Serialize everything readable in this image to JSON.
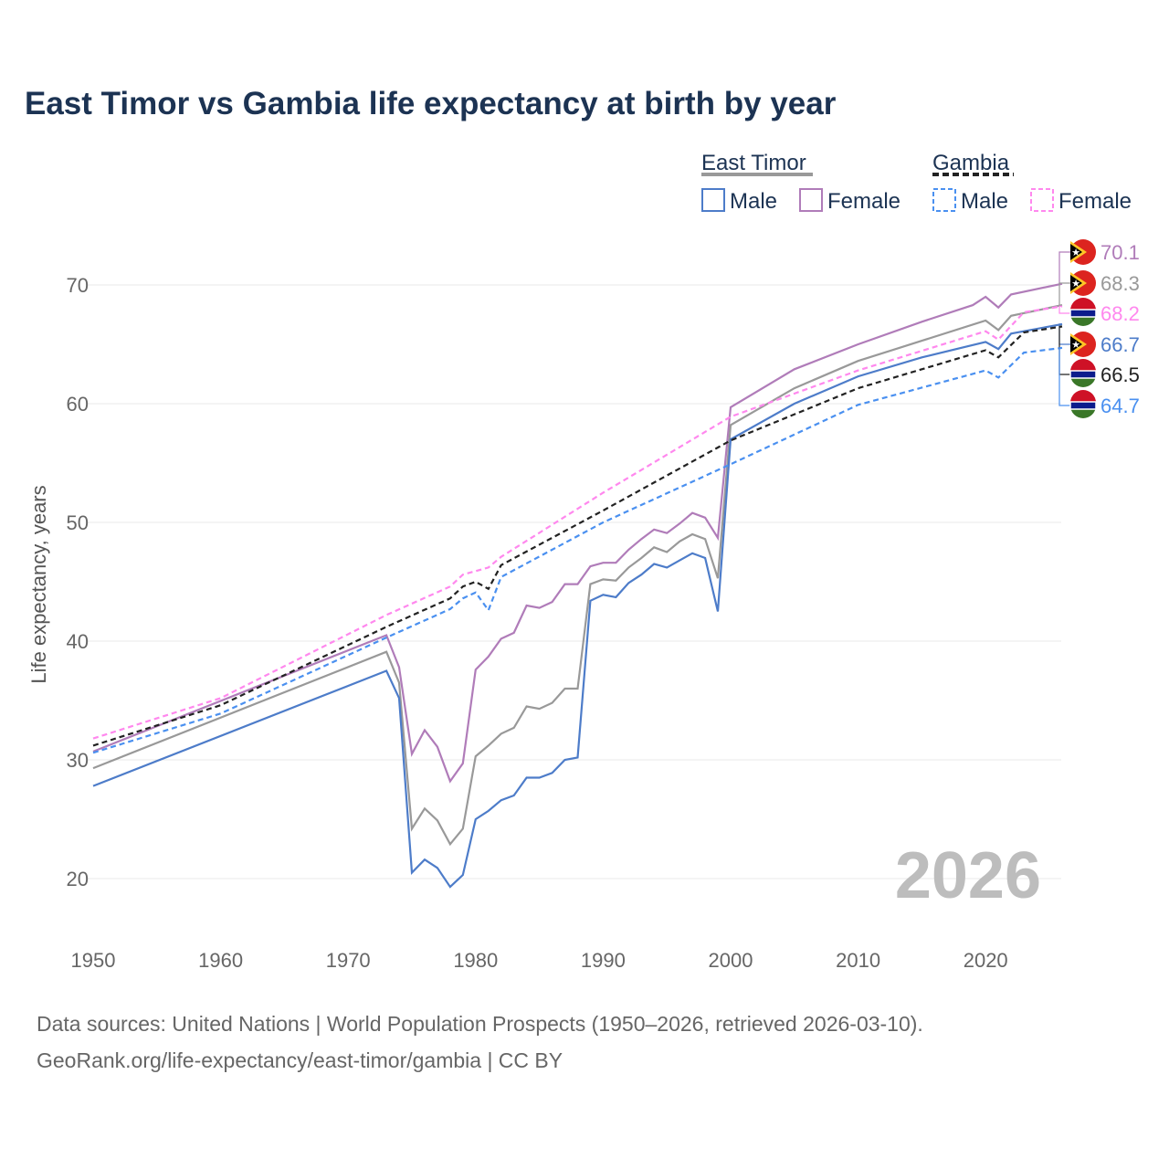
{
  "chart_data": {
    "type": "line",
    "title": "East Timor vs Gambia life expectancy at birth by year",
    "ylabel": "Life expectancy, years",
    "xlabel": "",
    "xlim": [
      1950,
      2026
    ],
    "ylim": [
      15,
      74
    ],
    "xticks": [
      1950,
      1960,
      1970,
      1980,
      1990,
      2000,
      2010,
      2020
    ],
    "yticks": [
      20,
      30,
      40,
      50,
      60,
      70
    ],
    "year_watermark": "2026",
    "legend": {
      "groups": [
        {
          "name": "East Timor",
          "items": [
            "Male",
            "Female"
          ]
        },
        {
          "name": "Gambia",
          "items": [
            "Male",
            "Female"
          ]
        }
      ],
      "placement": "top-right"
    },
    "series": [
      {
        "name": "East Timor Female",
        "country": "East Timor",
        "color": "#b07cb9",
        "dash": false,
        "end_label": "70.1",
        "points": [
          [
            1950,
            30.7
          ],
          [
            1973,
            40.5
          ],
          [
            1974,
            37.8
          ],
          [
            1975,
            30.5
          ],
          [
            1976,
            32.5
          ],
          [
            1977,
            31.1
          ],
          [
            1978,
            28.2
          ],
          [
            1979,
            29.7
          ],
          [
            1980,
            37.6
          ],
          [
            1981,
            38.7
          ],
          [
            1982,
            40.2
          ],
          [
            1983,
            40.7
          ],
          [
            1984,
            43.0
          ],
          [
            1985,
            42.8
          ],
          [
            1986,
            43.3
          ],
          [
            1987,
            44.8
          ],
          [
            1988,
            44.8
          ],
          [
            1989,
            46.3
          ],
          [
            1990,
            46.6
          ],
          [
            1991,
            46.6
          ],
          [
            1992,
            47.7
          ],
          [
            1993,
            48.6
          ],
          [
            1994,
            49.4
          ],
          [
            1995,
            49.1
          ],
          [
            1996,
            49.9
          ],
          [
            1997,
            50.8
          ],
          [
            1998,
            50.4
          ],
          [
            1999,
            48.7
          ],
          [
            2000,
            59.7
          ],
          [
            2005,
            62.9
          ],
          [
            2010,
            65.0
          ],
          [
            2015,
            66.9
          ],
          [
            2019,
            68.3
          ],
          [
            2020,
            69.0
          ],
          [
            2021,
            68.1
          ],
          [
            2022,
            69.2
          ],
          [
            2026,
            70.1
          ]
        ]
      },
      {
        "name": "East Timor",
        "country": "East Timor",
        "color": "#999999",
        "dash": false,
        "end_label": "68.3",
        "points": [
          [
            1950,
            29.3
          ],
          [
            1973,
            39.1
          ],
          [
            1974,
            36.5
          ],
          [
            1975,
            24.2
          ],
          [
            1976,
            25.9
          ],
          [
            1977,
            24.9
          ],
          [
            1978,
            22.9
          ],
          [
            1979,
            24.2
          ],
          [
            1980,
            30.3
          ],
          [
            1981,
            31.2
          ],
          [
            1982,
            32.2
          ],
          [
            1983,
            32.7
          ],
          [
            1984,
            34.5
          ],
          [
            1985,
            34.3
          ],
          [
            1986,
            34.8
          ],
          [
            1987,
            36.0
          ],
          [
            1988,
            36.0
          ],
          [
            1989,
            44.8
          ],
          [
            1990,
            45.2
          ],
          [
            1991,
            45.1
          ],
          [
            1992,
            46.2
          ],
          [
            1993,
            47.0
          ],
          [
            1994,
            47.9
          ],
          [
            1995,
            47.5
          ],
          [
            1996,
            48.4
          ],
          [
            1997,
            49.0
          ],
          [
            1998,
            48.6
          ],
          [
            1999,
            45.3
          ],
          [
            2000,
            58.2
          ],
          [
            2005,
            61.3
          ],
          [
            2010,
            63.6
          ],
          [
            2015,
            65.3
          ],
          [
            2020,
            67.0
          ],
          [
            2021,
            66.2
          ],
          [
            2022,
            67.4
          ],
          [
            2026,
            68.3
          ]
        ]
      },
      {
        "name": "Gambia Female",
        "country": "Gambia",
        "color": "#ff88ee",
        "dash": true,
        "end_label": "68.2",
        "points": [
          [
            1950,
            31.8
          ],
          [
            1960,
            35.2
          ],
          [
            1973,
            42.2
          ],
          [
            1978,
            44.6
          ],
          [
            1979,
            45.6
          ],
          [
            1980,
            45.9
          ],
          [
            1981,
            46.2
          ],
          [
            1982,
            47.1
          ],
          [
            1990,
            52.5
          ],
          [
            2000,
            58.9
          ],
          [
            2010,
            62.8
          ],
          [
            2020,
            66.1
          ],
          [
            2021,
            65.4
          ],
          [
            2023,
            67.7
          ],
          [
            2026,
            68.2
          ]
        ]
      },
      {
        "name": "East Timor Male",
        "country": "East Timor",
        "color": "#4d7cc9",
        "dash": false,
        "end_label": "66.7",
        "points": [
          [
            1950,
            27.8
          ],
          [
            1973,
            37.5
          ],
          [
            1974,
            35.2
          ],
          [
            1975,
            20.5
          ],
          [
            1976,
            21.6
          ],
          [
            1977,
            20.9
          ],
          [
            1978,
            19.3
          ],
          [
            1979,
            20.3
          ],
          [
            1980,
            25.0
          ],
          [
            1981,
            25.7
          ],
          [
            1982,
            26.6
          ],
          [
            1983,
            27.0
          ],
          [
            1984,
            28.5
          ],
          [
            1985,
            28.5
          ],
          [
            1986,
            28.9
          ],
          [
            1987,
            30.0
          ],
          [
            1988,
            30.2
          ],
          [
            1989,
            43.4
          ],
          [
            1990,
            43.9
          ],
          [
            1991,
            43.7
          ],
          [
            1992,
            44.9
          ],
          [
            1993,
            45.6
          ],
          [
            1994,
            46.5
          ],
          [
            1995,
            46.2
          ],
          [
            1996,
            46.8
          ],
          [
            1997,
            47.4
          ],
          [
            1998,
            47.0
          ],
          [
            1999,
            42.5
          ],
          [
            2000,
            57.0
          ],
          [
            2005,
            60.0
          ],
          [
            2010,
            62.3
          ],
          [
            2015,
            63.9
          ],
          [
            2020,
            65.2
          ],
          [
            2021,
            64.6
          ],
          [
            2022,
            65.9
          ],
          [
            2026,
            66.7
          ]
        ]
      },
      {
        "name": "Gambia",
        "country": "Gambia",
        "color": "#222222",
        "dash": true,
        "end_label": "66.5",
        "points": [
          [
            1950,
            31.2
          ],
          [
            1960,
            34.6
          ],
          [
            1973,
            41.2
          ],
          [
            1978,
            43.6
          ],
          [
            1979,
            44.6
          ],
          [
            1980,
            45.0
          ],
          [
            1981,
            44.4
          ],
          [
            1982,
            46.4
          ],
          [
            1990,
            51.0
          ],
          [
            2000,
            56.9
          ],
          [
            2010,
            61.3
          ],
          [
            2020,
            64.5
          ],
          [
            2021,
            63.9
          ],
          [
            2023,
            66.0
          ],
          [
            2026,
            66.5
          ]
        ]
      },
      {
        "name": "Gambia Male",
        "country": "Gambia",
        "color": "#4a90f0",
        "dash": true,
        "end_label": "64.7",
        "points": [
          [
            1950,
            30.6
          ],
          [
            1960,
            33.9
          ],
          [
            1973,
            40.3
          ],
          [
            1978,
            42.7
          ],
          [
            1979,
            43.6
          ],
          [
            1980,
            44.1
          ],
          [
            1981,
            42.6
          ],
          [
            1982,
            45.4
          ],
          [
            1990,
            50.0
          ],
          [
            2000,
            54.9
          ],
          [
            2010,
            59.9
          ],
          [
            2020,
            62.8
          ],
          [
            2021,
            62.2
          ],
          [
            2023,
            64.3
          ],
          [
            2026,
            64.7
          ]
        ]
      }
    ]
  },
  "footer": {
    "line1": "Data sources: United Nations | World Population Prospects (1950–2026, retrieved 2026-03-10).",
    "line2": "GeoRank.org/life-expectancy/east-timor/gambia | CC BY"
  }
}
